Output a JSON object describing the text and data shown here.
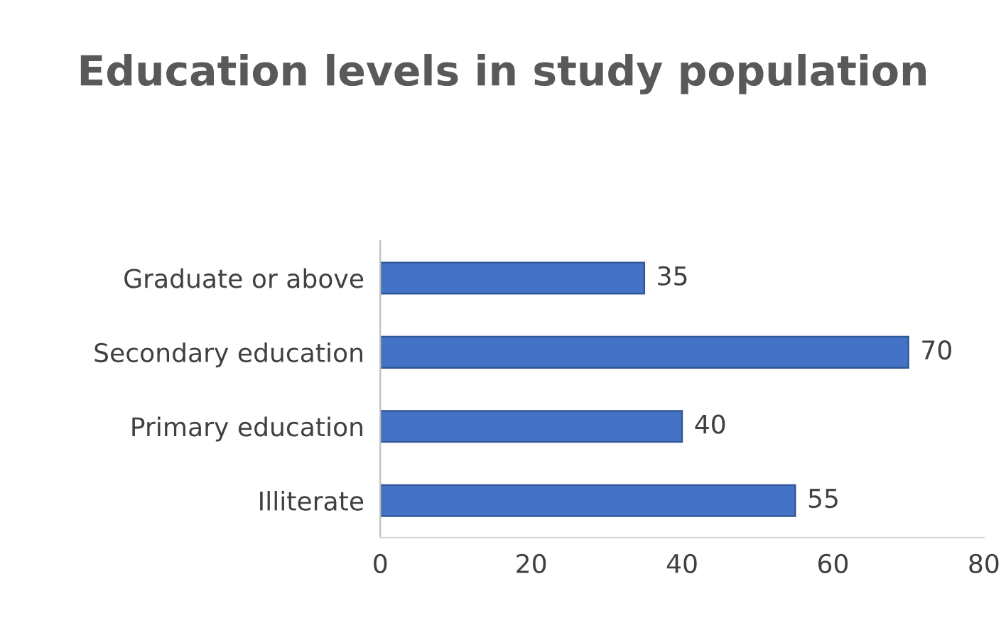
{
  "chart_data": {
    "type": "bar",
    "orientation": "horizontal",
    "title": "Education levels in study population",
    "categories": [
      "Graduate or above",
      "Secondary education",
      "Primary education",
      "Illiterate"
    ],
    "values": [
      35,
      70,
      40,
      55
    ],
    "color": "#4472c4",
    "xlim": [
      0,
      80
    ],
    "xticks": [
      0,
      20,
      40,
      60,
      80
    ],
    "grid": false,
    "legend": false,
    "data_labels": true
  }
}
